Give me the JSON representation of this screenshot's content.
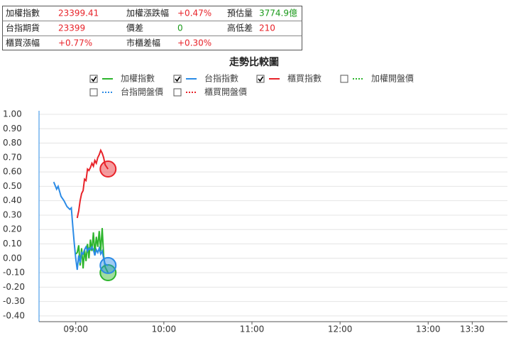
{
  "header_table": {
    "rows": [
      [
        {
          "label": "加權指數",
          "value": "23399.41",
          "color": "#e8232a"
        },
        {
          "label": "加權漲跌幅",
          "value": "+0.47%",
          "color": "#e8232a"
        },
        {
          "label": "預估量",
          "value": "3774.9億",
          "color": "#1a9a1a"
        }
      ],
      [
        {
          "label": "台指期貨",
          "value": "23399",
          "color": "#e8232a"
        },
        {
          "label": "價差",
          "value": "0",
          "color": "#1a9a1a"
        },
        {
          "label": "高低差",
          "value": "210",
          "color": "#e8232a"
        }
      ],
      [
        {
          "label": "櫃買漲幅",
          "value": "+0.77%",
          "color": "#e8232a"
        },
        {
          "label": "市櫃差幅",
          "value": "+0.30%",
          "color": "#e8232a"
        }
      ]
    ]
  },
  "chart_data": {
    "type": "line",
    "title": "走勢比較圖",
    "xlim": [
      515,
      834
    ],
    "xticks": [
      {
        "value": 540,
        "label": "09:00"
      },
      {
        "value": 600,
        "label": "10:00"
      },
      {
        "value": 660,
        "label": "11:00"
      },
      {
        "value": 720,
        "label": "12:00"
      },
      {
        "value": 780,
        "label": "13:00"
      },
      {
        "value": 810,
        "label": "13:30"
      }
    ],
    "ylim": [
      -0.44,
      1.0
    ],
    "yticks": [
      {
        "value": 1.0,
        "label": "1.00"
      },
      {
        "value": 0.9,
        "label": "0.90"
      },
      {
        "value": 0.8,
        "label": "0.80"
      },
      {
        "value": 0.7,
        "label": "0.70"
      },
      {
        "value": 0.6,
        "label": "0.60"
      },
      {
        "value": 0.5,
        "label": "0.50"
      },
      {
        "value": 0.4,
        "label": "0.40"
      },
      {
        "value": 0.3,
        "label": "0.30"
      },
      {
        "value": 0.2,
        "label": "0.20"
      },
      {
        "value": 0.1,
        "label": "0.10"
      },
      {
        "value": 0.0,
        "label": "0.00"
      },
      {
        "value": -0.1,
        "label": "-0.10"
      },
      {
        "value": -0.2,
        "label": "-0.20"
      },
      {
        "value": -0.3,
        "label": "-0.30"
      },
      {
        "value": -0.4,
        "label": "-0.40"
      }
    ],
    "grid": true,
    "series": [
      {
        "name": "加權指數",
        "color": "#2db52d",
        "dashed": false,
        "checked": true,
        "x": [
          540,
          541,
          542,
          543,
          544,
          545,
          546,
          547,
          548,
          549,
          550,
          551,
          552,
          553,
          554,
          555,
          556,
          557,
          558,
          559,
          560,
          562
        ],
        "values": [
          0.03,
          0.04,
          0.09,
          -0.05,
          0.07,
          -0.07,
          0.06,
          -0.02,
          0.1,
          0.0,
          0.13,
          0.05,
          0.18,
          0.03,
          0.15,
          0.08,
          0.19,
          0.05,
          0.21,
          0.02,
          -0.06,
          -0.1
        ]
      },
      {
        "name": "台指指數",
        "color": "#2b8be6",
        "dashed": false,
        "checked": true,
        "x": [
          525,
          527,
          528,
          530,
          532,
          534,
          536,
          537,
          538,
          539,
          540,
          541,
          542,
          543,
          544,
          545,
          546,
          547,
          548,
          549,
          550,
          551,
          552,
          553,
          554,
          555,
          556,
          557,
          558,
          559,
          560,
          562
        ],
        "values": [
          0.53,
          0.48,
          0.5,
          0.43,
          0.4,
          0.36,
          0.34,
          0.35,
          0.22,
          0.1,
          0.0,
          -0.08,
          0.02,
          -0.03,
          0.04,
          0.03,
          0.06,
          0.08,
          0.05,
          0.07,
          0.06,
          0.08,
          0.06,
          0.02,
          0.06,
          0.04,
          0.07,
          0.03,
          0.05,
          0.0,
          -0.04,
          -0.05
        ]
      },
      {
        "name": "櫃買指數",
        "color": "#e8232a",
        "dashed": false,
        "checked": true,
        "x": [
          541,
          542,
          543,
          544,
          545,
          546,
          547,
          548,
          549,
          550,
          551,
          552,
          553,
          554,
          555,
          556,
          557,
          558,
          559,
          560,
          562
        ],
        "values": [
          0.28,
          0.33,
          0.4,
          0.45,
          0.47,
          0.55,
          0.54,
          0.62,
          0.61,
          0.63,
          0.66,
          0.64,
          0.68,
          0.66,
          0.7,
          0.72,
          0.75,
          0.73,
          0.7,
          0.65,
          0.62
        ]
      },
      {
        "name": "加權開盤價",
        "color": "#2db52d",
        "dashed": true,
        "checked": false,
        "x": [],
        "values": []
      },
      {
        "name": "台指開盤價",
        "color": "#2b8be6",
        "dashed": true,
        "checked": false,
        "x": [],
        "values": []
      },
      {
        "name": "櫃買開盤價",
        "color": "#e8232a",
        "dashed": true,
        "checked": false,
        "x": [],
        "values": []
      }
    ]
  }
}
